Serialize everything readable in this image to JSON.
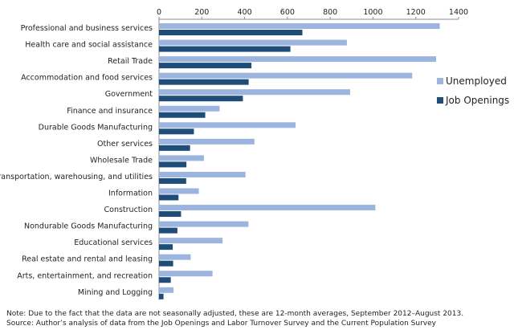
{
  "chart_data": {
    "type": "bar",
    "orientation": "horizontal",
    "title": "",
    "xlabel": "",
    "ylabel": "",
    "xlim": [
      0,
      1400
    ],
    "x_ticks": [
      "0",
      "200",
      "400",
      "600",
      "800",
      "1000",
      "1200",
      "1400"
    ],
    "x_tick_values": [
      0,
      200,
      400,
      600,
      800,
      1000,
      1200,
      1400
    ],
    "x_axis_position": "top",
    "grid": false,
    "legend_position": "right",
    "categories": [
      "Professional and business services",
      "Health care and social assistance",
      "Retail Trade",
      "Accommodation and food services",
      "Government",
      "Finance and insurance",
      "Durable Goods Manufacturing",
      "Other services",
      "Wholesale Trade",
      "Transportation, warehousing, and utilities",
      "Information",
      "Construction",
      "Nondurable Goods Manufacturing",
      "Educational services",
      "Real estate and rental and leasing",
      "Arts, entertainment, and recreation",
      "Mining and Logging"
    ],
    "series": [
      {
        "name": "Unemployed",
        "color": "#9bb5de",
        "values": [
          1312,
          878,
          1295,
          1183,
          893,
          283,
          638,
          446,
          210,
          404,
          186,
          1011,
          418,
          297,
          148,
          250,
          68
        ]
      },
      {
        "name": "Job Openings",
        "color": "#1f4d79",
        "values": [
          670,
          614,
          432,
          419,
          392,
          216,
          163,
          145,
          128,
          127,
          91,
          103,
          86,
          64,
          66,
          55,
          21
        ]
      }
    ]
  },
  "notes": {
    "note": "Note: Due to the fact that the data are not seasonally adjusted, these are 12-month averages, September 2012–August 2013.",
    "source": "Source: Author’s analysis of data from the Job Openings and Labor Turnover Survey and the Current Population Survey"
  }
}
